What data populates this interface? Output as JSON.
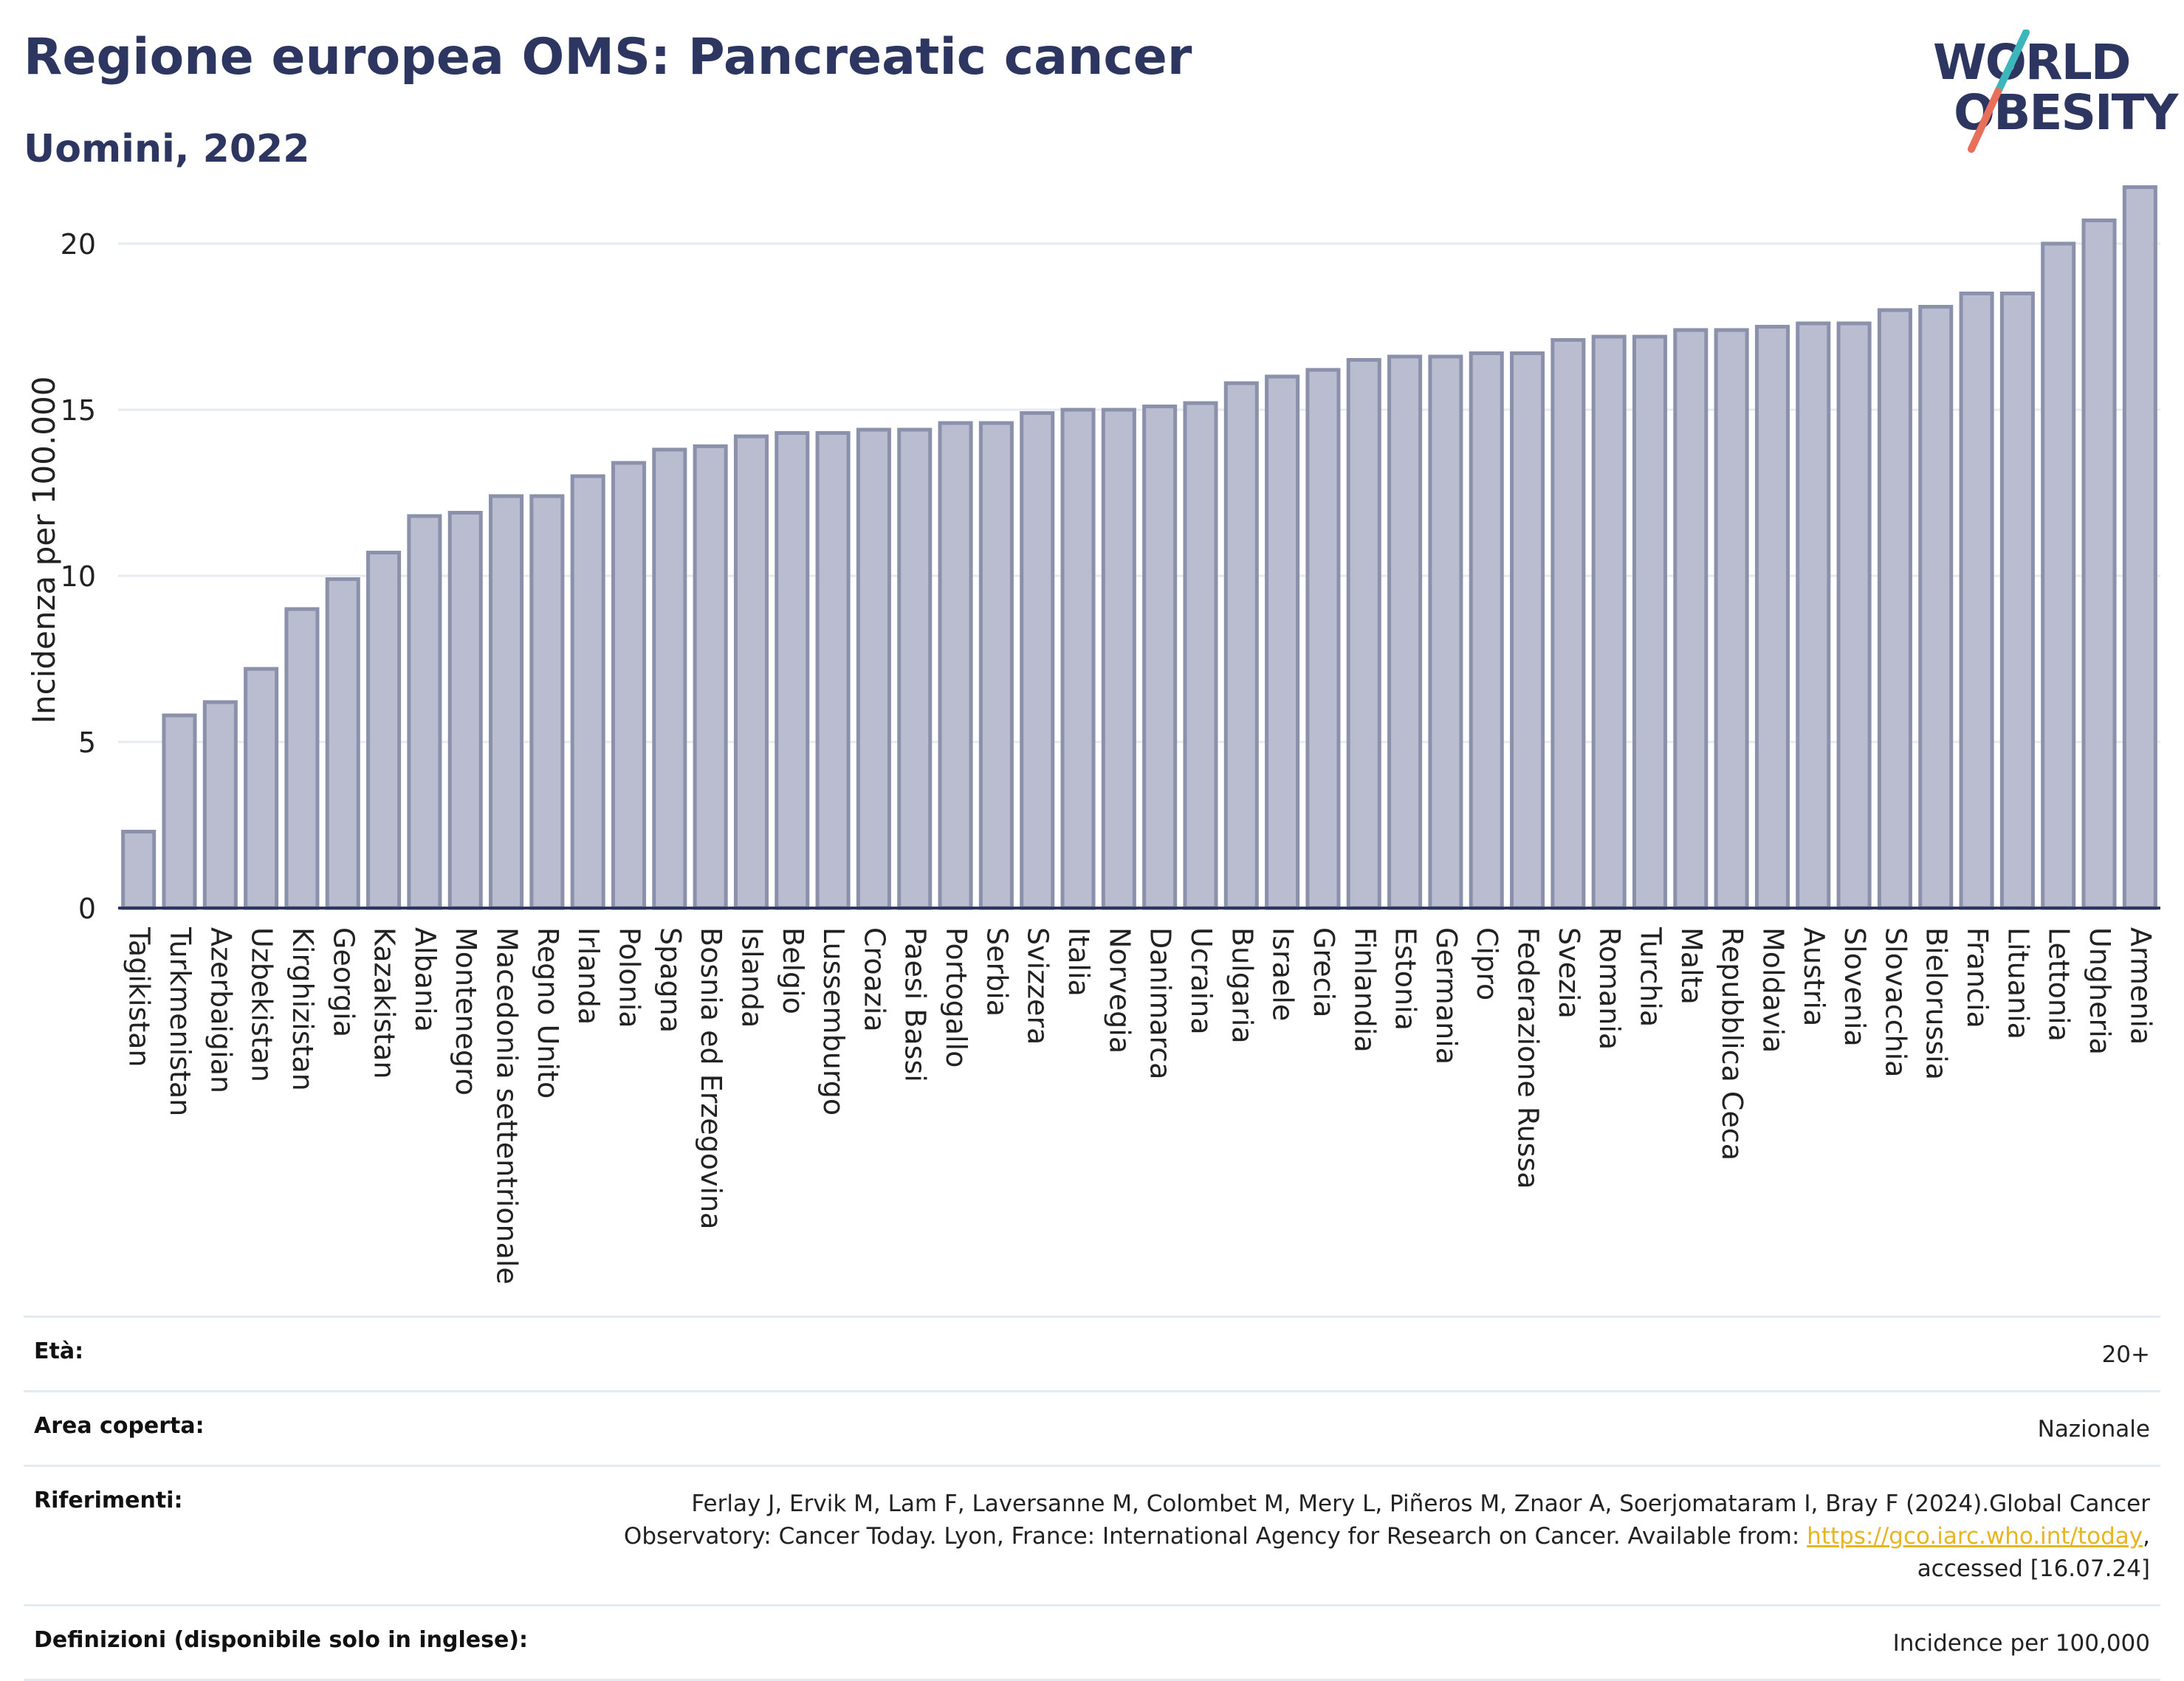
{
  "header": {
    "title": "Regione europea OMS: Pancreatic cancer",
    "subtitle": "Uomini, 2022"
  },
  "logo": {
    "line1": "WORLD",
    "line2": "OBESITY"
  },
  "chart_data": {
    "type": "bar",
    "title": "Regione europea OMS: Pancreatic cancer",
    "subtitle": "Uomini, 2022",
    "xlabel": "",
    "ylabel": "Incidenza per 100.000",
    "ylim": [
      0,
      22
    ],
    "yticks": [
      0,
      5,
      10,
      15,
      20
    ],
    "grid": true,
    "categories": [
      "Tagikistan",
      "Turkmenistan",
      "Azerbaigian",
      "Uzbekistan",
      "Kirghizistan",
      "Georgia",
      "Kazakistan",
      "Albania",
      "Montenegro",
      "Macedonia settentrionale",
      "Regno Unito",
      "Irlanda",
      "Polonia",
      "Spagna",
      "Bosnia ed Erzegovina",
      "Islanda",
      "Belgio",
      "Lussemburgo",
      "Croazia",
      "Paesi Bassi",
      "Portogallo",
      "Serbia",
      "Svizzera",
      "Italia",
      "Norvegia",
      "Danimarca",
      "Ucraina",
      "Bulgaria",
      "Israele",
      "Grecia",
      "Finlandia",
      "Estonia",
      "Germania",
      "Cipro",
      "Federazione Russa",
      "Svezia",
      "Romania",
      "Turchia",
      "Malta",
      "Repubblica Ceca",
      "Moldavia",
      "Austria",
      "Slovenia",
      "Slovacchia",
      "Bielorussia",
      "Francia",
      "Lituania",
      "Lettonia",
      "Ungheria",
      "Armenia"
    ],
    "values": [
      2.3,
      5.8,
      6.2,
      7.2,
      9.0,
      9.9,
      10.7,
      11.8,
      11.9,
      12.4,
      12.4,
      13.0,
      13.4,
      13.8,
      13.9,
      14.2,
      14.3,
      14.3,
      14.4,
      14.4,
      14.6,
      14.6,
      14.9,
      15.0,
      15.0,
      15.1,
      15.2,
      15.8,
      16.0,
      16.2,
      16.5,
      16.6,
      16.6,
      16.7,
      16.7,
      17.1,
      17.2,
      17.2,
      17.4,
      17.4,
      17.5,
      17.6,
      17.6,
      18.0,
      18.1,
      18.5,
      18.5,
      20.0,
      20.7,
      21.7
    ],
    "colors": {
      "bar_fill": "#b9bdcf",
      "bar_stroke": "#8b90ab",
      "grid": "#e6ebf1",
      "axis": "#2d3561"
    }
  },
  "meta": {
    "age_label": "Età:",
    "age_value": "20+",
    "area_label": "Area coperta:",
    "area_value": "Nazionale",
    "refs_label": "Riferimenti:",
    "refs_text_line1": "Ferlay J, Ervik M, Lam F, Laversanne M, Colombet M, Mery L, Piñeros M, Znaor A, Soerjomataram I, Bray F (2024).Global Cancer",
    "refs_text_line2": "Observatory: Cancer Today. Lyon, France: International Agency for Research on Cancer. Available from: ",
    "refs_link": "https://gco.iarc.who.int/today",
    "refs_text_line3": ", accessed [16.07.24]",
    "defs_label": "Definizioni (disponibile solo in inglese):",
    "defs_value": "Incidence per 100,000"
  }
}
